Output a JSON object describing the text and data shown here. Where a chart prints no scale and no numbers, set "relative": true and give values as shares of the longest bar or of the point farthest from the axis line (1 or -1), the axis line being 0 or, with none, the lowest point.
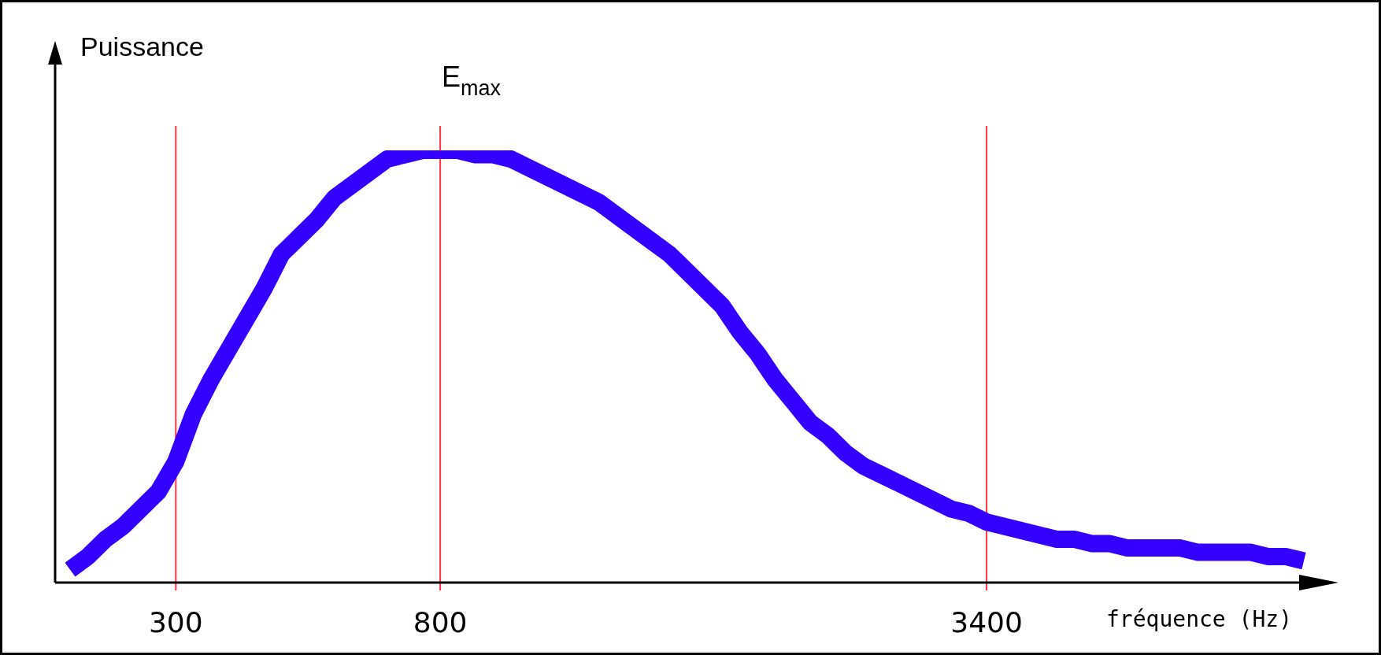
{
  "chart_data": {
    "type": "line",
    "relative": true,
    "ylabel": "Puissance",
    "xlabel": "fréquence (Hz)",
    "categories": [
      null,
      null,
      null,
      null,
      null,
      null,
      "300",
      null,
      null,
      null,
      null,
      null,
      null,
      null,
      null,
      null,
      null,
      null,
      null,
      null,
      null,
      "800",
      null,
      null,
      null,
      null,
      null,
      null,
      null,
      null,
      null,
      null,
      null,
      null,
      null,
      null,
      null,
      null,
      null,
      null,
      null,
      null,
      null,
      null,
      null,
      null,
      null,
      null,
      null,
      null,
      null,
      null,
      "3400",
      null,
      null,
      null,
      null,
      null,
      null,
      null,
      null,
      null,
      null,
      null,
      null,
      null,
      null,
      null,
      null,
      null,
      null
    ],
    "series": [
      {
        "color": "#3300ff",
        "values": [
          0.03,
          0.06,
          0.1,
          0.13,
          0.17,
          0.21,
          0.28,
          0.39,
          0.47,
          0.54,
          0.61,
          0.68,
          0.76,
          0.8,
          0.84,
          0.89,
          0.92,
          0.95,
          0.98,
          0.99,
          1.0,
          1.0,
          1.0,
          0.99,
          0.99,
          0.98,
          0.96,
          0.94,
          0.92,
          0.9,
          0.88,
          0.85,
          0.82,
          0.79,
          0.76,
          0.72,
          0.68,
          0.64,
          0.58,
          0.53,
          0.47,
          0.42,
          0.37,
          0.34,
          0.3,
          0.27,
          0.25,
          0.23,
          0.21,
          0.19,
          0.17,
          0.16,
          0.14,
          0.13,
          0.12,
          0.11,
          0.1,
          0.1,
          0.09,
          0.09,
          0.08,
          0.08,
          0.08,
          0.08,
          0.07,
          0.07,
          0.07,
          0.07,
          0.06,
          0.06,
          0.05
        ]
      }
    ],
    "ref_lines": [
      {
        "axis": "x",
        "value": "300",
        "color": "#ff3344"
      },
      {
        "axis": "x",
        "value": "800",
        "color": "#ff3344",
        "label": "E$_{max}$"
      },
      {
        "axis": "x",
        "value": "3400",
        "color": "#ff3344"
      }
    ],
    "legend": false,
    "marker": "none",
    "line_style": "solid"
  }
}
